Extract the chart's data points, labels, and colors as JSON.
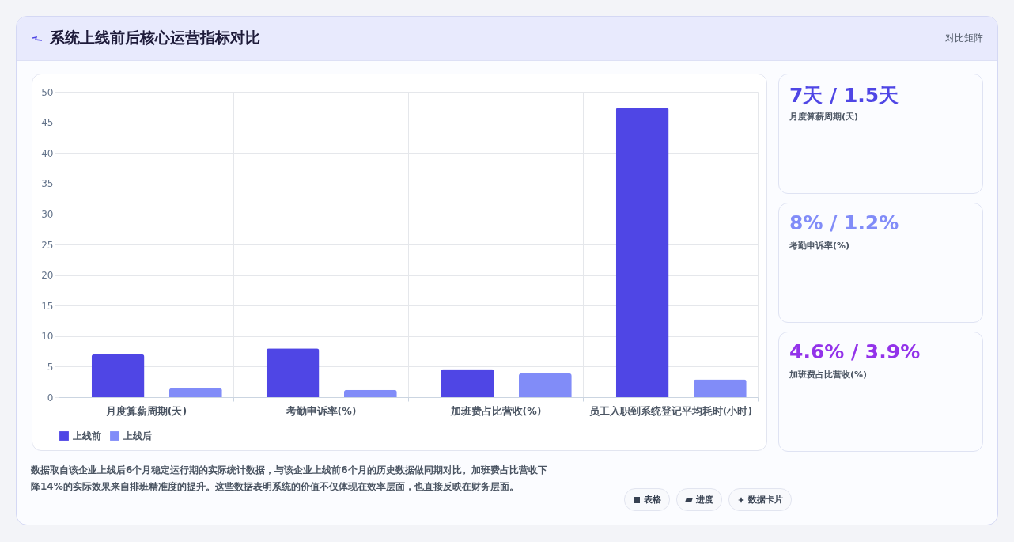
{
  "chart_data": [
    {
      "type": "bar",
      "title": "系统上线前后核心运营指标对比",
      "categories": [
        "月度算薪周期(天)",
        "考勤申诉率(%)",
        "加班费占比营收(%)",
        "员工入职到系统登记平均耗时(小时)"
      ],
      "series": [
        {
          "name": "上线前",
          "color": "#4f46e5",
          "values": [
            7,
            8,
            4.6,
            47.4
          ]
        },
        {
          "name": "上线后",
          "color": "#818cf8",
          "values": [
            1.5,
            1.2,
            3.9,
            2.9
          ]
        }
      ],
      "ylim": [
        0,
        50
      ],
      "yticks": [
        0,
        5,
        10,
        15,
        20,
        25,
        30,
        35,
        40,
        45,
        50
      ],
      "grid": true,
      "legend": "bottom",
      "annotations": [
        "对比矩阵",
        "数据取自该企业上线后6个月稳定运行期的实际统计数据，与该企业上线前6个月的历史数据做同期对比。加班费占比营收下降14%的实际效果来自排班精准度的提升。这些数据表明系统的价值不仅体现在效率层面，也直接反映在财务层面。"
      ]
    },
    {
      "type": "other",
      "annotations": [
        "7天 / 1.5天",
        "月度算薪周期(天)",
        "8% / 1.2%",
        "考勤申诉率(%)",
        "4.6% / 3.9%",
        "加班费占比营收(%)"
      ],
      "colors": [
        "#4f46e5",
        "#818cf8",
        "#9333ea"
      ]
    },
    {
      "type": "other",
      "annotations": [
        "表格",
        "进度",
        "数据卡片"
      ]
    }
  ]
}
